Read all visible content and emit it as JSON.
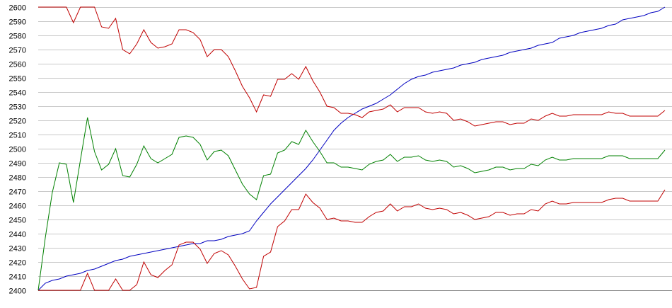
{
  "chart_data": {
    "type": "line",
    "title": "",
    "xlabel": "",
    "ylabel": "",
    "ylim": [
      2400,
      2600
    ],
    "yticks": [
      2400,
      2410,
      2420,
      2430,
      2440,
      2450,
      2460,
      2470,
      2480,
      2490,
      2500,
      2510,
      2520,
      2530,
      2540,
      2550,
      2560,
      2570,
      2580,
      2590,
      2600
    ],
    "xlim": [
      0,
      88
    ],
    "grid": true,
    "legend": "none",
    "series": [
      {
        "color": "#0000c0",
        "values": [
          2400,
          2405,
          2407,
          2408,
          2410,
          2411,
          2412,
          2414,
          2415,
          2417,
          2419,
          2421,
          2422,
          2424,
          2425,
          2426,
          2427,
          2428,
          2429,
          2430,
          2431,
          2432,
          2433,
          2433,
          2435,
          2435,
          2436,
          2438,
          2439,
          2440,
          2442,
          2449,
          2455,
          2461,
          2466,
          2471,
          2476,
          2481,
          2486,
          2492,
          2499,
          2506,
          2513,
          2518,
          2522,
          2525,
          2528,
          2530,
          2532,
          2535,
          2538,
          2542,
          2546,
          2549,
          2551,
          2552,
          2554,
          2555,
          2556,
          2557,
          2559,
          2560,
          2561,
          2563,
          2564,
          2565,
          2566,
          2568,
          2569,
          2570,
          2571,
          2573,
          2574,
          2575,
          2578,
          2579,
          2580,
          2582,
          2583,
          2584,
          2585,
          2587,
          2588,
          2591,
          2592,
          2593,
          2594,
          2596,
          2597,
          2600
        ]
      },
      {
        "color": "#c00000",
        "values": [
          2600,
          2600,
          2600,
          2600,
          2600,
          2589,
          2600,
          2600,
          2600,
          2586,
          2585,
          2592,
          2570,
          2567,
          2574,
          2584,
          2575,
          2571,
          2572,
          2574,
          2584,
          2584,
          2582,
          2577,
          2565,
          2570,
          2570,
          2565,
          2555,
          2544,
          2536,
          2526,
          2538,
          2537,
          2549,
          2549,
          2553,
          2549,
          2558,
          2548,
          2540,
          2530,
          2529,
          2525,
          2525,
          2524,
          2522,
          2526,
          2527,
          2528,
          2531,
          2526,
          2529,
          2529,
          2529,
          2526,
          2525,
          2526,
          2525,
          2520,
          2521,
          2519,
          2516,
          2517,
          2518,
          2519,
          2519,
          2517,
          2518,
          2518,
          2521,
          2520,
          2523,
          2525,
          2523,
          2523,
          2524,
          2524,
          2524,
          2524,
          2524,
          2526,
          2525,
          2525,
          2523,
          2523,
          2523,
          2523,
          2523,
          2527
        ]
      },
      {
        "color": "#008000",
        "values": [
          2400,
          2437,
          2469,
          2490,
          2489,
          2462,
          2492,
          2522,
          2498,
          2485,
          2489,
          2500,
          2481,
          2480,
          2489,
          2502,
          2493,
          2490,
          2493,
          2496,
          2508,
          2509,
          2508,
          2503,
          2492,
          2498,
          2499,
          2495,
          2485,
          2475,
          2468,
          2464,
          2481,
          2482,
          2497,
          2499,
          2505,
          2503,
          2513,
          2505,
          2498,
          2490,
          2490,
          2487,
          2487,
          2486,
          2485,
          2489,
          2491,
          2492,
          2496,
          2491,
          2494,
          2494,
          2495,
          2492,
          2491,
          2492,
          2491,
          2487,
          2488,
          2486,
          2483,
          2484,
          2485,
          2487,
          2487,
          2485,
          2486,
          2486,
          2489,
          2488,
          2492,
          2494,
          2492,
          2492,
          2493,
          2493,
          2493,
          2493,
          2493,
          2495,
          2495,
          2495,
          2493,
          2493,
          2493,
          2493,
          2493,
          2499
        ]
      },
      {
        "color": "#c00000",
        "values": [
          2400,
          2400,
          2400,
          2400,
          2400,
          2400,
          2400,
          2412,
          2400,
          2400,
          2400,
          2408,
          2400,
          2400,
          2404,
          2420,
          2411,
          2409,
          2414,
          2418,
          2432,
          2434,
          2434,
          2429,
          2419,
          2426,
          2428,
          2425,
          2417,
          2408,
          2401,
          2402,
          2424,
          2427,
          2445,
          2449,
          2457,
          2457,
          2468,
          2462,
          2458,
          2450,
          2451,
          2449,
          2449,
          2448,
          2448,
          2452,
          2455,
          2456,
          2461,
          2456,
          2459,
          2459,
          2461,
          2458,
          2457,
          2458,
          2457,
          2454,
          2455,
          2453,
          2450,
          2451,
          2452,
          2455,
          2455,
          2453,
          2454,
          2454,
          2457,
          2456,
          2461,
          2463,
          2461,
          2461,
          2462,
          2462,
          2462,
          2462,
          2462,
          2464,
          2465,
          2465,
          2463,
          2463,
          2463,
          2463,
          2463,
          2471
        ]
      }
    ]
  }
}
